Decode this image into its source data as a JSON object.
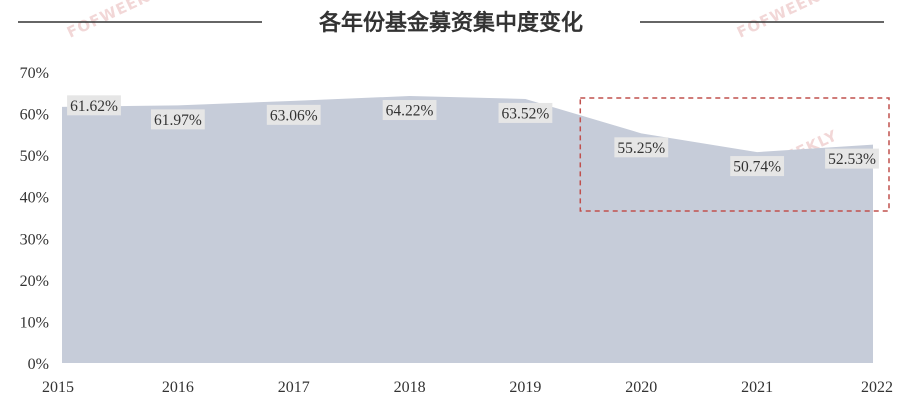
{
  "chart_data": {
    "type": "area",
    "title": "各年份基金募资集中度变化",
    "categories": [
      "2015",
      "2016",
      "2017",
      "2018",
      "2019",
      "2020",
      "2021",
      "2022"
    ],
    "series": [
      {
        "values": [
          61.62,
          61.97,
          63.06,
          64.22,
          63.52,
          55.25,
          50.74,
          52.53
        ],
        "labels": [
          "61.62%",
          "61.97%",
          "63.06%",
          "64.22%",
          "63.52%",
          "55.25%",
          "50.74%",
          "52.53%"
        ]
      }
    ],
    "yticks": [
      "0%",
      "10%",
      "20%",
      "30%",
      "40%",
      "50%",
      "60%",
      "70%"
    ],
    "ylim": [
      0,
      70
    ],
    "grid": false,
    "legend": "none",
    "highlight": {
      "from": "2020",
      "to": "2022",
      "style": "dashed-box"
    },
    "colors": {
      "area": "#c6ccd9",
      "label_bg": "#e6e6e6",
      "highlight": "#c0504d",
      "title_rule": "#333333"
    },
    "watermark": "FOFWEEKLY"
  }
}
